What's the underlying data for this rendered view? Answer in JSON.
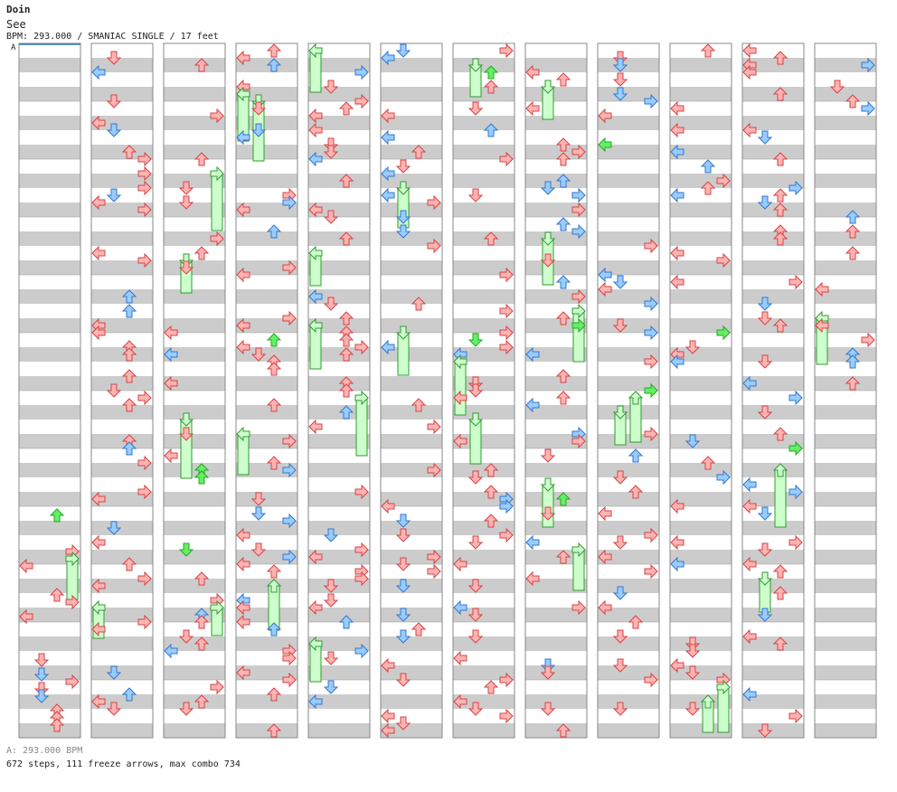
{
  "song": {
    "title": "Doin",
    "artist": "See",
    "info": "BPM: 293.000 / SMANIAC SINGLE / 17 feet"
  },
  "footer": {
    "bpm_line": "A: 293.000 BPM",
    "stats_line": "672 steps, 111 freeze arrows, max combo 734"
  },
  "marker_label": "A",
  "colors": {
    "stripe": "#cccccc",
    "column_border": "#888888",
    "arrow_red": "#ffb3b3",
    "arrow_red_stroke": "#d44444",
    "arrow_blue": "#99ccff",
    "arrow_blue_stroke": "#3377cc",
    "arrow_green": "#66ee66",
    "arrow_green_stroke": "#22aa22",
    "arrow_pink": "#ffccff",
    "arrow_pink_stroke": "#cc66cc",
    "freeze_body": "#ccffcc",
    "freeze_stroke": "#339933"
  },
  "chart_data": {
    "type": "step-chart",
    "columns": 12,
    "lanes": [
      "left",
      "down",
      "up",
      "right"
    ],
    "stats": {
      "steps": 672,
      "freeze_arrows": 111,
      "max_combo": 734
    },
    "bpm": 293.0
  }
}
